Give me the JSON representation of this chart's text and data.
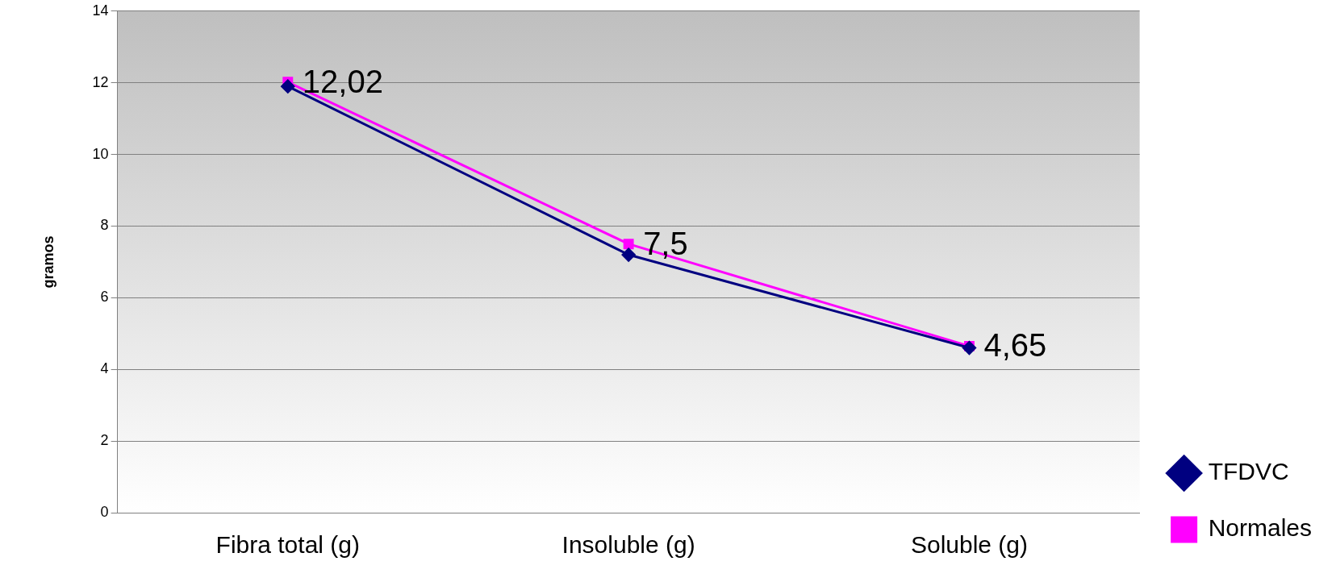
{
  "chart_data": {
    "type": "line",
    "ylabel": "gramos",
    "categories": [
      "Fibra total (g)",
      "Insoluble (g)",
      "Soluble (g)"
    ],
    "series": [
      {
        "name": "TFDVC",
        "color": "#000080",
        "values": [
          11.9,
          7.2,
          4.6
        ],
        "marker": "diamond"
      },
      {
        "name": "Normales",
        "color": "#ff00ff",
        "values": [
          12.02,
          7.5,
          4.65
        ],
        "marker": "square",
        "value_labels": [
          "12,02",
          "7,5",
          "4,65"
        ]
      }
    ],
    "ylim": [
      0,
      14
    ],
    "yticks": [
      0,
      2,
      4,
      6,
      8,
      10,
      12,
      14
    ],
    "grid": "y",
    "legend": "bottom right"
  }
}
